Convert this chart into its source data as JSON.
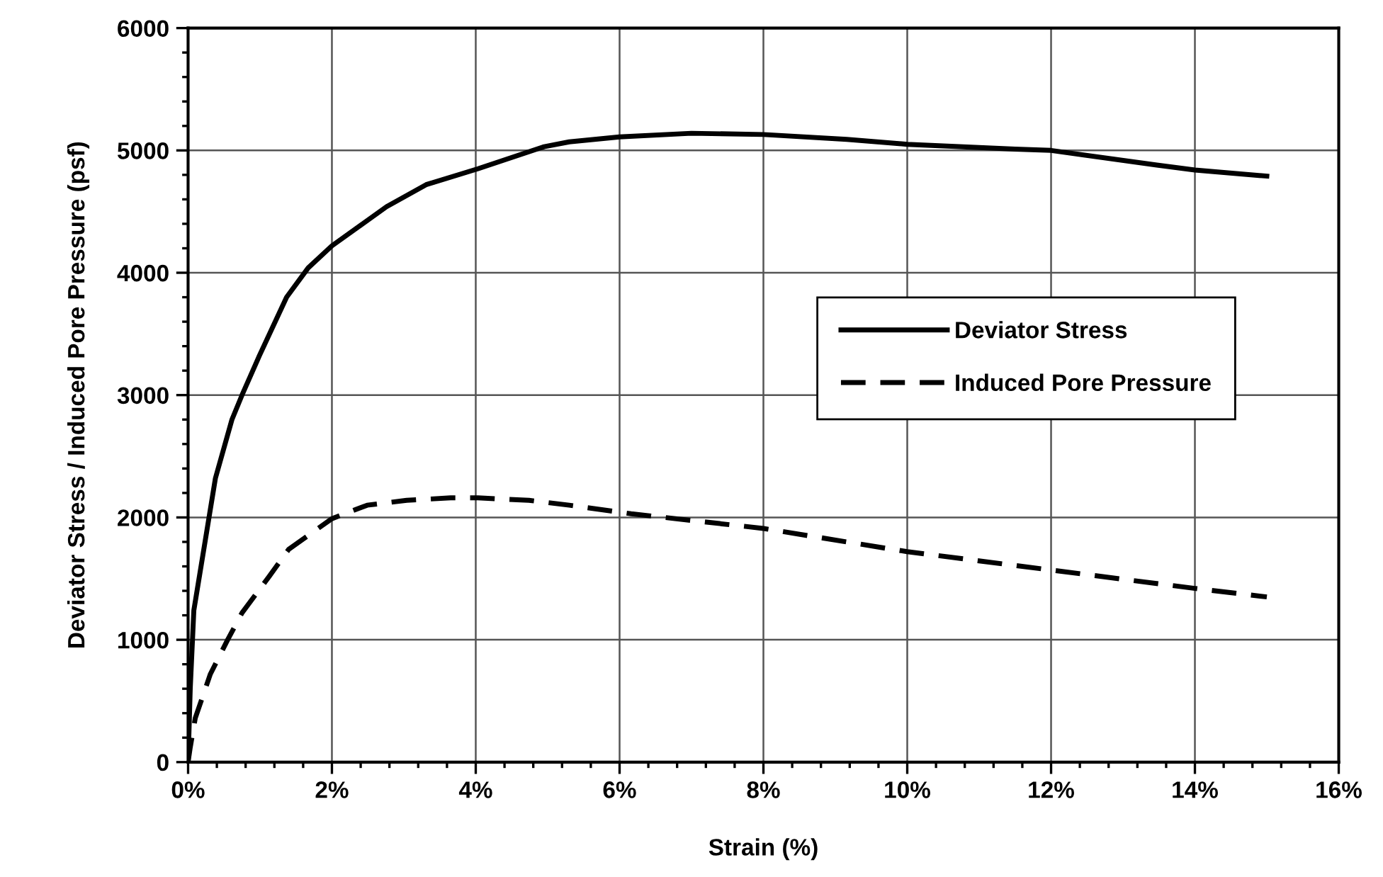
{
  "chart_data": {
    "type": "line",
    "xlabel": "Strain (%)",
    "ylabel": "Deviator Stress / Induced Pore Pressure (psf)",
    "xlim": [
      0,
      16
    ],
    "ylim": [
      0,
      6000
    ],
    "xticks": [
      {
        "value": 0,
        "label": "0%"
      },
      {
        "value": 0.4,
        "label": null
      },
      {
        "value": 0.8,
        "label": null
      },
      {
        "value": 1.2,
        "label": null
      },
      {
        "value": 1.6,
        "label": null
      },
      {
        "value": 2,
        "label": "2%"
      },
      {
        "value": 2.4,
        "label": null
      },
      {
        "value": 2.8,
        "label": null
      },
      {
        "value": 3.2,
        "label": null
      },
      {
        "value": 3.6,
        "label": null
      },
      {
        "value": 4,
        "label": "4%"
      },
      {
        "value": 4.4,
        "label": null
      },
      {
        "value": 4.8,
        "label": null
      },
      {
        "value": 5.2,
        "label": null
      },
      {
        "value": 5.6,
        "label": null
      },
      {
        "value": 6,
        "label": "6%"
      },
      {
        "value": 6.4,
        "label": null
      },
      {
        "value": 6.8,
        "label": null
      },
      {
        "value": 7.2,
        "label": null
      },
      {
        "value": 7.6,
        "label": null
      },
      {
        "value": 8,
        "label": "8%"
      },
      {
        "value": 8.4,
        "label": null
      },
      {
        "value": 8.8,
        "label": null
      },
      {
        "value": 9.2,
        "label": null
      },
      {
        "value": 9.6,
        "label": null
      },
      {
        "value": 10,
        "label": "10%"
      },
      {
        "value": 10.4,
        "label": null
      },
      {
        "value": 10.8,
        "label": null
      },
      {
        "value": 11.2,
        "label": null
      },
      {
        "value": 11.6,
        "label": null
      },
      {
        "value": 12,
        "label": "12%"
      },
      {
        "value": 12.4,
        "label": null
      },
      {
        "value": 12.8,
        "label": null
      },
      {
        "value": 13.2,
        "label": null
      },
      {
        "value": 13.6,
        "label": null
      },
      {
        "value": 14,
        "label": "14%"
      },
      {
        "value": 14.4,
        "label": null
      },
      {
        "value": 14.8,
        "label": null
      },
      {
        "value": 15.2,
        "label": null
      },
      {
        "value": 15.6,
        "label": null
      },
      {
        "value": 16,
        "label": "16%"
      }
    ],
    "yticks": [
      0,
      {
        "value": 200,
        "label": null
      },
      {
        "value": 400,
        "label": null
      },
      {
        "value": 600,
        "label": null
      },
      {
        "value": 800,
        "label": null
      },
      1000,
      {
        "value": 1200,
        "label": null
      },
      {
        "value": 1400,
        "label": null
      },
      {
        "value": 1600,
        "label": null
      },
      {
        "value": 1800,
        "label": null
      },
      2000,
      {
        "value": 2200,
        "label": null
      },
      {
        "value": 2400,
        "label": null
      },
      {
        "value": 2600,
        "label": null
      },
      {
        "value": 2800,
        "label": null
      },
      3000,
      {
        "value": 3200,
        "label": null
      },
      {
        "value": 3400,
        "label": null
      },
      {
        "value": 3600,
        "label": null
      },
      {
        "value": 3800,
        "label": null
      },
      4000,
      {
        "value": 4200,
        "label": null
      },
      {
        "value": 4400,
        "label": null
      },
      {
        "value": 4600,
        "label": null
      },
      {
        "value": 4800,
        "label": null
      },
      5000,
      {
        "value": 5200,
        "label": null
      },
      {
        "value": 5400,
        "label": null
      },
      {
        "value": 5600,
        "label": null
      },
      {
        "value": 5800,
        "label": null
      },
      6000
    ],
    "grid": true,
    "legend": "right",
    "marker": "none",
    "series": [
      {
        "name": "Deviator Stress",
        "color": "#000000",
        "line_style": "solid",
        "x": [
          0,
          0.03,
          0.08,
          0.38,
          0.61,
          0.75,
          0.99,
          1.37,
          1.67,
          2.0,
          2.76,
          3.31,
          4.03,
          4.95,
          5.3,
          6.0,
          7.0,
          8.0,
          9.16,
          10.0,
          11.5,
          12.0,
          13.47,
          14.0,
          15.0
        ],
        "values": [
          0,
          600,
          1240,
          2320,
          2800,
          3000,
          3320,
          3800,
          4040,
          4220,
          4540,
          4720,
          4850,
          5030,
          5070,
          5110,
          5140,
          5130,
          5090,
          5050,
          5010,
          5000,
          4880,
          4840,
          4790
        ]
      },
      {
        "name": "Induced Pore Pressure",
        "color": "#000000",
        "line_style": "dashed",
        "x": [
          0,
          0.03,
          0.1,
          0.31,
          0.55,
          0.75,
          1.13,
          1.4,
          2.0,
          2.49,
          3.04,
          3.65,
          4.03,
          4.74,
          5.3,
          6.16,
          8.0,
          10.0,
          12.0,
          14.0,
          15.0
        ],
        "values": [
          0,
          120,
          360,
          720,
          1000,
          1220,
          1520,
          1740,
          1990,
          2100,
          2140,
          2160,
          2160,
          2140,
          2100,
          2030,
          1910,
          1720,
          1570,
          1420,
          1350
        ]
      }
    ]
  }
}
